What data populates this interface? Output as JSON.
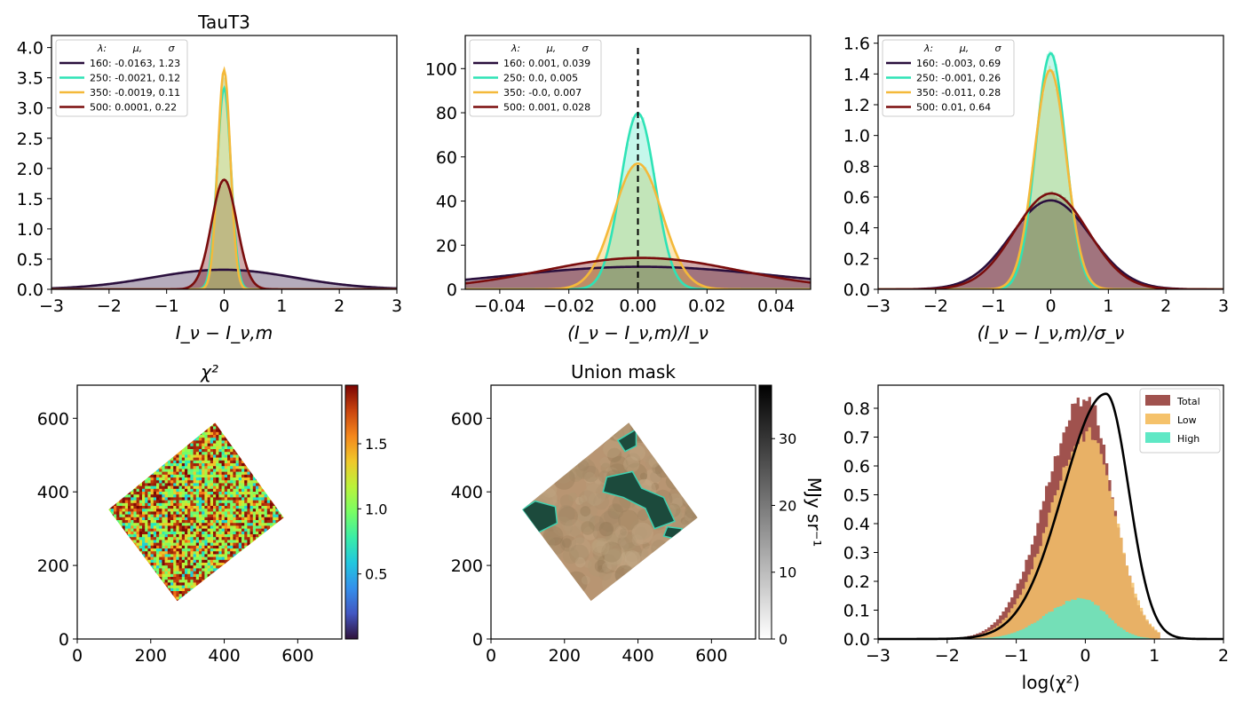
{
  "chart_data": [
    {
      "type": "area",
      "panel": "top-left",
      "title": "TauT3",
      "xlabel": "I_ν − I_ν,m",
      "xlim": [
        -3,
        3
      ],
      "ylim": [
        0,
        4.2
      ],
      "xticks": [
        "−3",
        "−2",
        "−1",
        "0",
        "1",
        "2",
        "3"
      ],
      "yticks": [
        "0.0",
        "0.5",
        "1.0",
        "1.5",
        "2.0",
        "2.5",
        "3.0",
        "3.5",
        "4.0"
      ],
      "legend_header": [
        "λ:",
        "μ,",
        "σ"
      ],
      "legend_position": "top-left",
      "series": [
        {
          "label": "160: -0.0163,  1.23",
          "wavelength": 160,
          "mu": -0.0163,
          "sigma": 1.23,
          "color": "#2a0f3d"
        },
        {
          "label": "250: -0.0021,  0.12",
          "wavelength": 250,
          "mu": -0.0021,
          "sigma": 0.12,
          "color": "#2ee3b6"
        },
        {
          "label": "350: -0.0019,  0.11",
          "wavelength": 350,
          "mu": -0.0019,
          "sigma": 0.11,
          "color": "#f4b93a"
        },
        {
          "label": "500: 0.0001,  0.22",
          "wavelength": 500,
          "mu": 0.0001,
          "sigma": 0.22,
          "color": "#7a0d0d"
        }
      ]
    },
    {
      "type": "area",
      "panel": "top-middle",
      "title": "",
      "xlabel": "(I_ν − I_ν,m)/I_ν",
      "xlim": [
        -0.05,
        0.05
      ],
      "ylim": [
        0,
        115
      ],
      "xticks": [
        "−0.04",
        "−0.02",
        "0.00",
        "0.02",
        "0.04"
      ],
      "yticks": [
        "0",
        "20",
        "40",
        "60",
        "80",
        "100"
      ],
      "vline_x": 0,
      "legend_header": [
        "λ:",
        "μ,",
        "σ"
      ],
      "legend_position": "top-left",
      "series": [
        {
          "label": "160: 0.001,  0.039",
          "wavelength": 160,
          "mu": 0.001,
          "sigma": 0.039,
          "color": "#2a0f3d"
        },
        {
          "label": "250: 0.0,  0.005",
          "wavelength": 250,
          "mu": 0.0,
          "sigma": 0.005,
          "color": "#2ee3b6"
        },
        {
          "label": "350: -0.0,  0.007",
          "wavelength": 350,
          "mu": -0.0,
          "sigma": 0.007,
          "color": "#f4b93a"
        },
        {
          "label": "500: 0.001,  0.028",
          "wavelength": 500,
          "mu": 0.001,
          "sigma": 0.028,
          "color": "#7a0d0d"
        }
      ]
    },
    {
      "type": "area",
      "panel": "top-right",
      "title": "",
      "xlabel": "(I_ν − I_ν,m)/σ_ν",
      "xlim": [
        -3,
        3
      ],
      "ylim": [
        0,
        1.65
      ],
      "xticks": [
        "−3",
        "−2",
        "−1",
        "0",
        "1",
        "2",
        "3"
      ],
      "yticks": [
        "0.0",
        "0.2",
        "0.4",
        "0.6",
        "0.8",
        "1.0",
        "1.2",
        "1.4",
        "1.6"
      ],
      "legend_header": [
        "λ:",
        "μ,",
        "σ"
      ],
      "legend_position": "top-left",
      "series": [
        {
          "label": "160: -0.003,  0.69",
          "wavelength": 160,
          "mu": -0.003,
          "sigma": 0.69,
          "color": "#2a0f3d"
        },
        {
          "label": "250: -0.001,  0.26",
          "wavelength": 250,
          "mu": -0.001,
          "sigma": 0.26,
          "color": "#2ee3b6"
        },
        {
          "label": "350: -0.011,  0.28",
          "wavelength": 350,
          "mu": -0.011,
          "sigma": 0.28,
          "color": "#f4b93a"
        },
        {
          "label": "500: 0.01,  0.64",
          "wavelength": 500,
          "mu": 0.01,
          "sigma": 0.64,
          "color": "#7a0d0d"
        }
      ]
    },
    {
      "type": "heatmap",
      "panel": "bottom-left",
      "title": "χ²",
      "xlim": [
        0,
        720
      ],
      "ylim": [
        0,
        690
      ],
      "xticks": [
        "0",
        "200",
        "400",
        "600"
      ],
      "yticks": [
        "0",
        "200",
        "400",
        "600"
      ],
      "colorbar_ticks": [
        "0.5",
        "1.0",
        "1.5"
      ],
      "colorbar_range": [
        0.0,
        1.95
      ],
      "colormap": "turbo",
      "footprint": [
        [
          85,
          352
        ],
        [
          375,
          588
        ],
        [
          562,
          330
        ],
        [
          272,
          103
        ]
      ]
    },
    {
      "type": "heatmap",
      "panel": "bottom-middle",
      "title": "Union mask",
      "xlim": [
        0,
        720
      ],
      "ylim": [
        0,
        690
      ],
      "xticks": [
        "0",
        "200",
        "400",
        "600"
      ],
      "yticks": [
        "0",
        "200",
        "400",
        "600"
      ],
      "colorbar_ticks": [
        "0",
        "10",
        "20",
        "30"
      ],
      "colorbar_range": [
        0,
        38
      ],
      "colorbar_label": "MJy sr⁻¹",
      "colormap": "gray",
      "footprint": [
        [
          85,
          352
        ],
        [
          375,
          588
        ],
        [
          562,
          330
        ],
        [
          272,
          103
        ]
      ]
    },
    {
      "type": "bar",
      "panel": "bottom-right",
      "title": "",
      "xlabel": "log(χ²)",
      "xlim": [
        -3,
        2
      ],
      "ylim": [
        0,
        0.88
      ],
      "xticks": [
        "−3",
        "−2",
        "−1",
        "0",
        "1",
        "2"
      ],
      "yticks": [
        "0.0",
        "0.1",
        "0.2",
        "0.3",
        "0.4",
        "0.5",
        "0.6",
        "0.7",
        "0.8"
      ],
      "legend_position": "top-right",
      "series": [
        {
          "name": "Total",
          "color": "#a0524e",
          "mu": 0.0,
          "sigma": 0.42,
          "peak": 0.84
        },
        {
          "name": "Low",
          "color": "#f5c26b",
          "mu": 0.05,
          "sigma": 0.42,
          "peak": 0.71
        },
        {
          "name": "High",
          "color": "#5fe8c5",
          "mu": -0.05,
          "sigma": 0.38,
          "peak": 0.14
        }
      ],
      "curve": {
        "color": "#000000",
        "peak_x": 0.3,
        "peak_y": 0.85
      }
    }
  ]
}
